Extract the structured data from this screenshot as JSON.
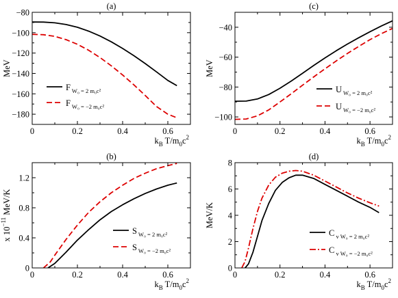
{
  "chart_data": [
    {
      "panel": "a",
      "type": "line",
      "title": "(a)",
      "xlabel": "k_B T/m_0 c^2",
      "ylabel": "MeV",
      "xlim": [
        0,
        0.7
      ],
      "ylim": [
        -190,
        -80
      ],
      "xticks": [
        "0",
        "0.2",
        "0.4",
        "0.6"
      ],
      "yticks": [
        "-80",
        "-100",
        "-120",
        "-140",
        "-160",
        "-180"
      ],
      "legend_position": "bottom-left",
      "series": [
        {
          "name": "F",
          "subscript": "W0 = 2 m0c2",
          "color": "#000000",
          "dash": "solid",
          "x": [
            0.0,
            0.05,
            0.1,
            0.15,
            0.2,
            0.25,
            0.3,
            0.35,
            0.4,
            0.45,
            0.5,
            0.55,
            0.6,
            0.64
          ],
          "y": [
            -89.5,
            -89.6,
            -90.3,
            -92.0,
            -94.7,
            -98.5,
            -103.3,
            -109.0,
            -115.5,
            -122.6,
            -130.3,
            -138.5,
            -146.9,
            -152
          ]
        },
        {
          "name": "F",
          "subscript": "W0 = -2 m0c2",
          "color": "#dd0000",
          "dash": "dashed",
          "x": [
            0.0,
            0.05,
            0.1,
            0.15,
            0.2,
            0.25,
            0.3,
            0.35,
            0.4,
            0.45,
            0.5,
            0.55,
            0.6,
            0.64
          ],
          "y": [
            -101.6,
            -102.0,
            -103.6,
            -106.8,
            -111.4,
            -117.3,
            -124.4,
            -132.5,
            -141.5,
            -151.2,
            -161.6,
            -172.5,
            -180.0,
            -183.5
          ]
        }
      ]
    },
    {
      "panel": "b",
      "type": "line",
      "title": "(b)",
      "xlabel": "k_B T/m_0 c^2",
      "ylabel": "x 10^-11 MeV/K",
      "xlim": [
        0,
        0.7
      ],
      "ylim": [
        0,
        1.4
      ],
      "xticks": [
        "0",
        "0.2",
        "0.4",
        "0.6"
      ],
      "yticks": [
        "0",
        "0.4",
        "0.8",
        "1.2"
      ],
      "legend_position": "bottom-right",
      "series": [
        {
          "name": "S",
          "subscript": "W0 = 2 m0c2",
          "color": "#000000",
          "dash": "solid",
          "x": [
            0.07,
            0.1,
            0.15,
            0.2,
            0.25,
            0.3,
            0.35,
            0.4,
            0.45,
            0.5,
            0.55,
            0.6,
            0.64
          ],
          "y": [
            0.0,
            0.06,
            0.21,
            0.37,
            0.51,
            0.64,
            0.75,
            0.84,
            0.92,
            0.99,
            1.05,
            1.1,
            1.13
          ]
        },
        {
          "name": "S",
          "subscript": "W0 = -2 m0c2",
          "color": "#dd0000",
          "dash": "dashed",
          "x": [
            0.05,
            0.08,
            0.1,
            0.15,
            0.2,
            0.25,
            0.3,
            0.35,
            0.4,
            0.45,
            0.5,
            0.55,
            0.6,
            0.64
          ],
          "y": [
            0.0,
            0.08,
            0.17,
            0.38,
            0.57,
            0.74,
            0.88,
            1.0,
            1.1,
            1.19,
            1.26,
            1.32,
            1.36,
            1.39
          ]
        }
      ]
    },
    {
      "panel": "c",
      "type": "line",
      "title": "(c)",
      "xlabel": "k_B T/m_0 c^2",
      "ylabel": "MeV",
      "xlim": [
        0,
        0.7
      ],
      "ylim": [
        -105,
        -30
      ],
      "xticks": [
        "0",
        "0.2",
        "0.4",
        "0.6"
      ],
      "yticks": [
        "-40",
        "-60",
        "-80",
        "-100"
      ],
      "legend_position": "bottom-right",
      "series": [
        {
          "name": "U",
          "subscript": "W0 = 2 m0c2",
          "color": "#000000",
          "dash": "solid",
          "x": [
            0.0,
            0.05,
            0.1,
            0.15,
            0.2,
            0.25,
            0.3,
            0.35,
            0.4,
            0.45,
            0.5,
            0.55,
            0.6,
            0.65,
            0.7
          ],
          "y": [
            -89.5,
            -89.4,
            -88.0,
            -85.0,
            -80.8,
            -76.0,
            -70.8,
            -65.6,
            -60.5,
            -55.7,
            -51.2,
            -47.0,
            -43.0,
            -39.2,
            -35.7
          ]
        },
        {
          "name": "U",
          "subscript": "W0 = -2 m0c2",
          "color": "#dd0000",
          "dash": "dashed",
          "x": [
            0.0,
            0.05,
            0.1,
            0.15,
            0.2,
            0.25,
            0.3,
            0.35,
            0.4,
            0.45,
            0.5,
            0.55,
            0.6,
            0.65,
            0.7
          ],
          "y": [
            -101.6,
            -101.4,
            -99.3,
            -95.3,
            -90.0,
            -84.5,
            -78.8,
            -73.2,
            -67.8,
            -62.5,
            -57.5,
            -52.8,
            -48.3,
            -44.3,
            -40.8
          ]
        }
      ]
    },
    {
      "panel": "d",
      "type": "line",
      "title": "(d)",
      "xlabel": "k_B T/m_0 c^2",
      "ylabel": "MeV/K",
      "xlim": [
        0,
        0.7
      ],
      "ylim": [
        0,
        8
      ],
      "xticks": [
        "0",
        "0.2",
        "0.4",
        "0.6"
      ],
      "yticks": [
        "0",
        "2",
        "4",
        "6",
        "8"
      ],
      "legend_position": "bottom-right",
      "series": [
        {
          "name": "C",
          "subscript": "v  W0 = 2 m0c2",
          "color": "#000000",
          "dash": "solid",
          "x": [
            0.045,
            0.06,
            0.08,
            0.1,
            0.12,
            0.15,
            0.18,
            0.21,
            0.24,
            0.27,
            0.3,
            0.35,
            0.4,
            0.45,
            0.5,
            0.55,
            0.6,
            0.64
          ],
          "y": [
            0.0,
            0.3,
            1.2,
            2.4,
            3.6,
            4.9,
            5.9,
            6.5,
            6.85,
            7.05,
            7.05,
            6.8,
            6.35,
            5.9,
            5.45,
            5.0,
            4.6,
            4.2
          ]
        },
        {
          "name": "C",
          "subscript": "v  W0 = -2 m0c2",
          "color": "#dd0000",
          "dash": "dashdot",
          "x": [
            0.03,
            0.045,
            0.06,
            0.08,
            0.1,
            0.12,
            0.15,
            0.18,
            0.21,
            0.24,
            0.27,
            0.3,
            0.35,
            0.4,
            0.45,
            0.5,
            0.55,
            0.6,
            0.64
          ],
          "y": [
            0.0,
            0.5,
            1.5,
            3.0,
            4.3,
            5.3,
            6.3,
            6.9,
            7.2,
            7.35,
            7.4,
            7.35,
            7.05,
            6.6,
            6.15,
            5.7,
            5.3,
            4.95,
            4.7
          ]
        }
      ]
    }
  ]
}
